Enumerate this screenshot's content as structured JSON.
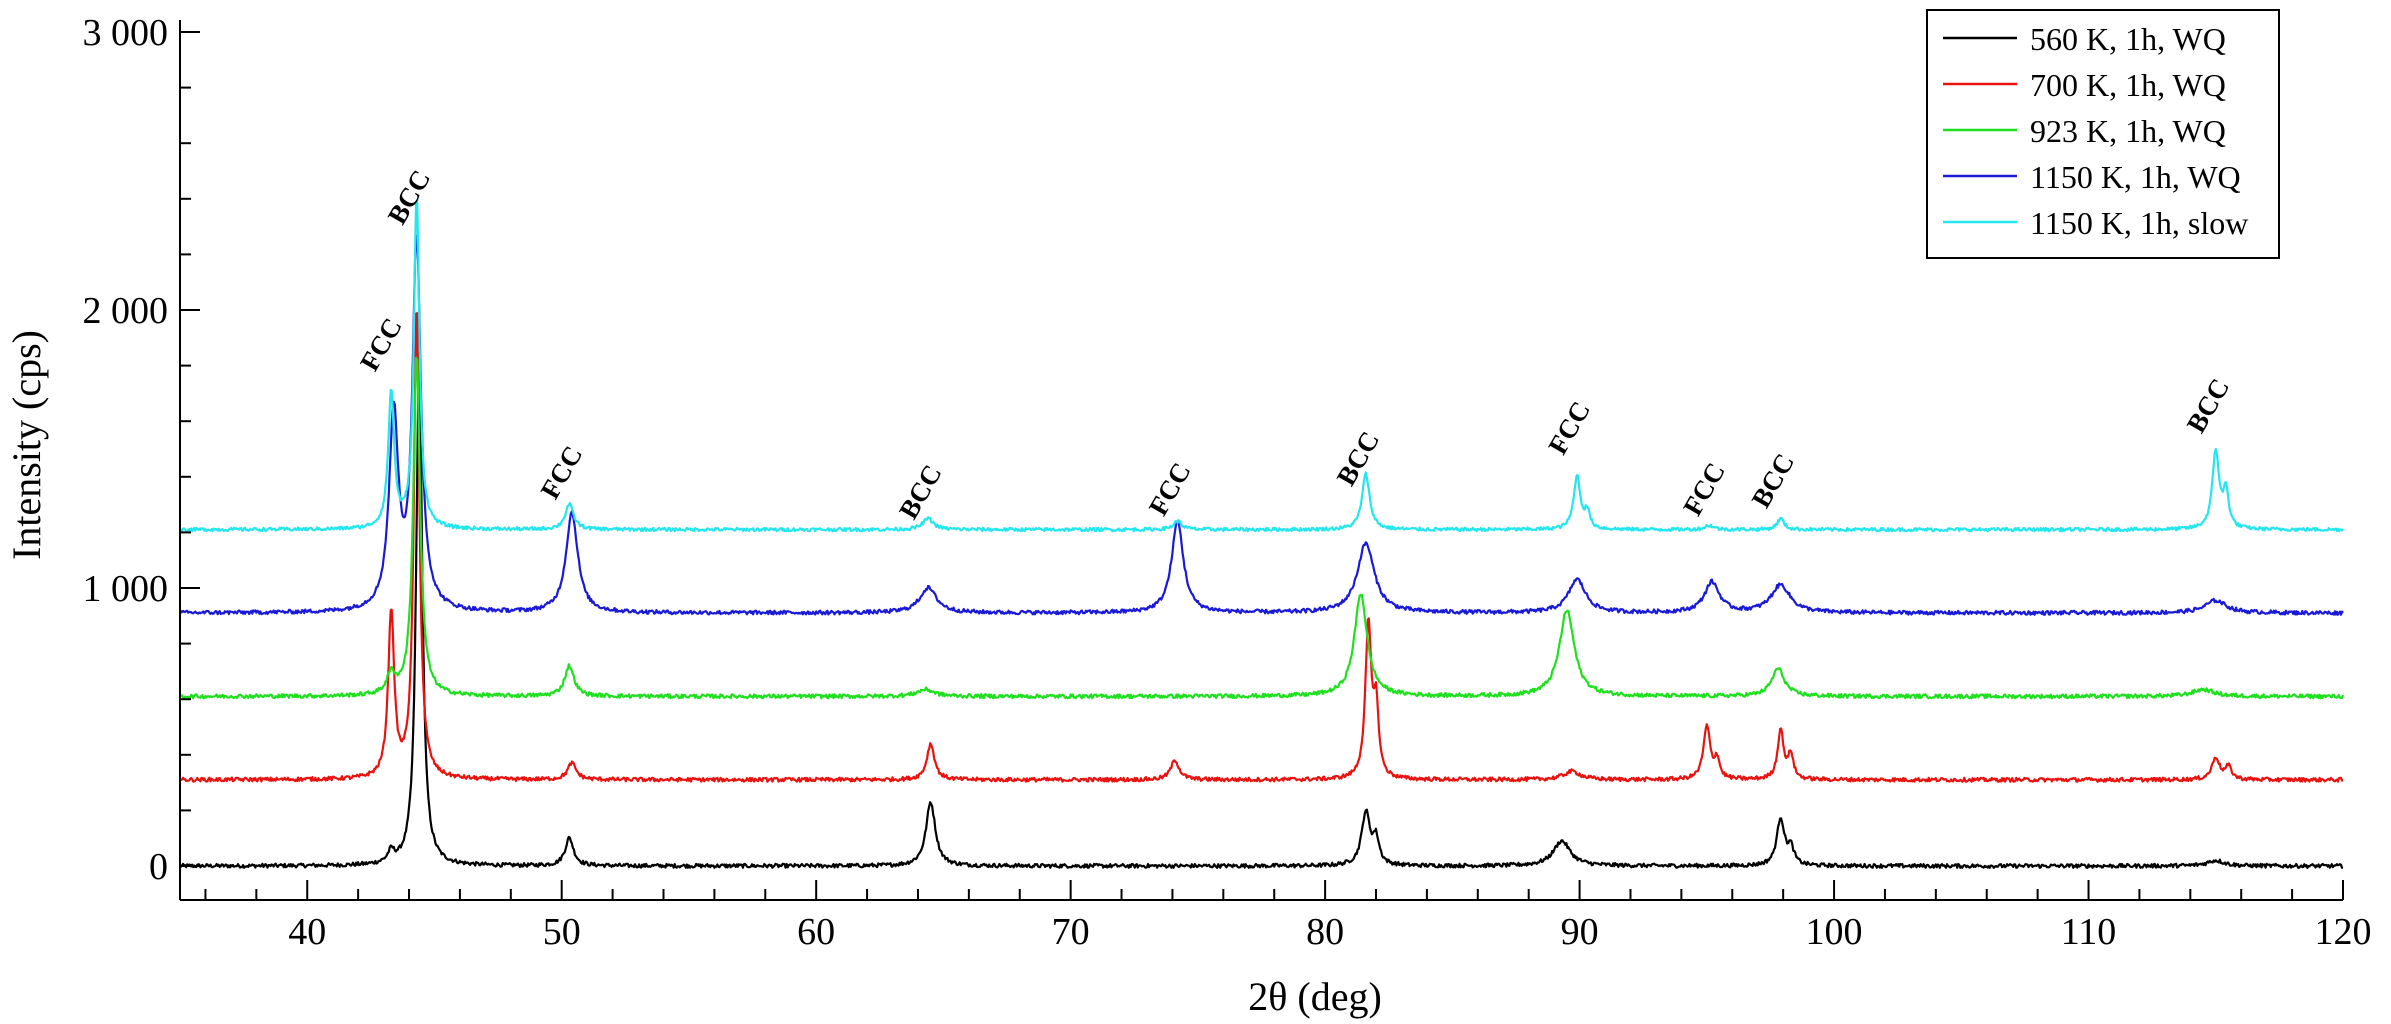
{
  "chart_data": {
    "type": "line",
    "xlabel": "2θ (deg)",
    "ylabel": "Intensity (cps)",
    "xlim": [
      35,
      120
    ],
    "ylim": [
      -150,
      3000
    ],
    "x_ticks": [
      40,
      50,
      60,
      70,
      80,
      90,
      100,
      110,
      120
    ],
    "x_tick_labels": [
      "40",
      "50",
      "60",
      "70",
      "80",
      "90",
      "100",
      "110",
      "120"
    ],
    "y_ticks": [
      0,
      1000,
      2000,
      3000
    ],
    "y_tick_labels": [
      "0",
      "1 000",
      "2 000",
      "3 000"
    ],
    "grid": false,
    "legend": {
      "position": "top-right"
    },
    "series": [
      {
        "name": "560 K, 1h, WQ",
        "color": "#000000",
        "baseline": 0,
        "noise": 7,
        "peaks": [
          {
            "x": 43.3,
            "height": 40,
            "width": 0.15
          },
          {
            "x": 44.4,
            "height": 1850,
            "width": 0.14
          },
          {
            "x": 50.3,
            "height": 100,
            "width": 0.2
          },
          {
            "x": 64.5,
            "height": 230,
            "width": 0.22
          },
          {
            "x": 81.6,
            "height": 190,
            "width": 0.2
          },
          {
            "x": 82.0,
            "height": 90,
            "width": 0.15
          },
          {
            "x": 89.3,
            "height": 90,
            "width": 0.4
          },
          {
            "x": 97.9,
            "height": 170,
            "width": 0.18
          },
          {
            "x": 98.3,
            "height": 60,
            "width": 0.15
          },
          {
            "x": 115.0,
            "height": 20,
            "width": 0.4
          }
        ]
      },
      {
        "name": "700 K, 1h, WQ",
        "color": "#e8130f",
        "baseline": 310,
        "noise": 7,
        "peaks": [
          {
            "x": 43.3,
            "height": 600,
            "width": 0.14
          },
          {
            "x": 44.3,
            "height": 1700,
            "width": 0.13
          },
          {
            "x": 50.4,
            "height": 60,
            "width": 0.2
          },
          {
            "x": 64.5,
            "height": 130,
            "width": 0.18
          },
          {
            "x": 74.1,
            "height": 70,
            "width": 0.2
          },
          {
            "x": 81.7,
            "height": 550,
            "width": 0.14
          },
          {
            "x": 82.0,
            "height": 250,
            "width": 0.12
          },
          {
            "x": 89.7,
            "height": 30,
            "width": 0.4
          },
          {
            "x": 95.0,
            "height": 190,
            "width": 0.16
          },
          {
            "x": 95.4,
            "height": 70,
            "width": 0.12
          },
          {
            "x": 97.9,
            "height": 180,
            "width": 0.14
          },
          {
            "x": 98.3,
            "height": 90,
            "width": 0.12
          },
          {
            "x": 115.0,
            "height": 80,
            "width": 0.18
          },
          {
            "x": 115.5,
            "height": 45,
            "width": 0.15
          }
        ]
      },
      {
        "name": "923 K, 1h, WQ",
        "color": "#1fe01f",
        "baseline": 610,
        "noise": 7,
        "peaks": [
          {
            "x": 43.3,
            "height": 70,
            "width": 0.2
          },
          {
            "x": 44.3,
            "height": 1230,
            "width": 0.16
          },
          {
            "x": 50.3,
            "height": 110,
            "width": 0.22
          },
          {
            "x": 64.3,
            "height": 25,
            "width": 0.4
          },
          {
            "x": 81.4,
            "height": 370,
            "width": 0.3
          },
          {
            "x": 89.5,
            "height": 310,
            "width": 0.35
          },
          {
            "x": 97.8,
            "height": 100,
            "width": 0.3
          },
          {
            "x": 114.5,
            "height": 25,
            "width": 0.5
          }
        ]
      },
      {
        "name": "1150 K, 1h, WQ",
        "color": "#1a1ad6",
        "baseline": 910,
        "noise": 7,
        "peaks": [
          {
            "x": 43.4,
            "height": 700,
            "width": 0.22
          },
          {
            "x": 44.3,
            "height": 1330,
            "width": 0.2
          },
          {
            "x": 50.4,
            "height": 360,
            "width": 0.28
          },
          {
            "x": 64.4,
            "height": 90,
            "width": 0.4
          },
          {
            "x": 74.2,
            "height": 330,
            "width": 0.28
          },
          {
            "x": 81.6,
            "height": 250,
            "width": 0.4
          },
          {
            "x": 89.9,
            "height": 120,
            "width": 0.4
          },
          {
            "x": 95.2,
            "height": 110,
            "width": 0.35
          },
          {
            "x": 97.9,
            "height": 100,
            "width": 0.45
          },
          {
            "x": 115.0,
            "height": 45,
            "width": 0.5
          }
        ]
      },
      {
        "name": "1150 K, 1h, slow",
        "color": "#23e6ee",
        "baseline": 1210,
        "noise": 6,
        "peaks": [
          {
            "x": 43.3,
            "height": 490,
            "width": 0.14
          },
          {
            "x": 44.3,
            "height": 1200,
            "width": 0.13
          },
          {
            "x": 50.3,
            "height": 90,
            "width": 0.2
          },
          {
            "x": 64.4,
            "height": 40,
            "width": 0.25
          },
          {
            "x": 74.2,
            "height": 30,
            "width": 0.2
          },
          {
            "x": 81.6,
            "height": 200,
            "width": 0.18
          },
          {
            "x": 89.9,
            "height": 190,
            "width": 0.16
          },
          {
            "x": 90.3,
            "height": 60,
            "width": 0.12
          },
          {
            "x": 95.1,
            "height": 15,
            "width": 0.2
          },
          {
            "x": 97.9,
            "height": 40,
            "width": 0.16
          },
          {
            "x": 115.0,
            "height": 280,
            "width": 0.16
          },
          {
            "x": 115.4,
            "height": 130,
            "width": 0.13
          }
        ]
      }
    ],
    "annotations": [
      {
        "text": "FCC",
        "x": 43.2,
        "y": 1860
      },
      {
        "text": "BCC",
        "x": 44.3,
        "y": 2390
      },
      {
        "text": "FCC",
        "x": 50.3,
        "y": 1400
      },
      {
        "text": "BCC",
        "x": 64.4,
        "y": 1330
      },
      {
        "text": "FCC",
        "x": 74.2,
        "y": 1340
      },
      {
        "text": "BCC",
        "x": 81.6,
        "y": 1450
      },
      {
        "text": "FCC",
        "x": 89.9,
        "y": 1560
      },
      {
        "text": "FCC",
        "x": 95.2,
        "y": 1340
      },
      {
        "text": "BCC",
        "x": 97.9,
        "y": 1370
      },
      {
        "text": "BCC",
        "x": 115.0,
        "y": 1640
      }
    ]
  }
}
